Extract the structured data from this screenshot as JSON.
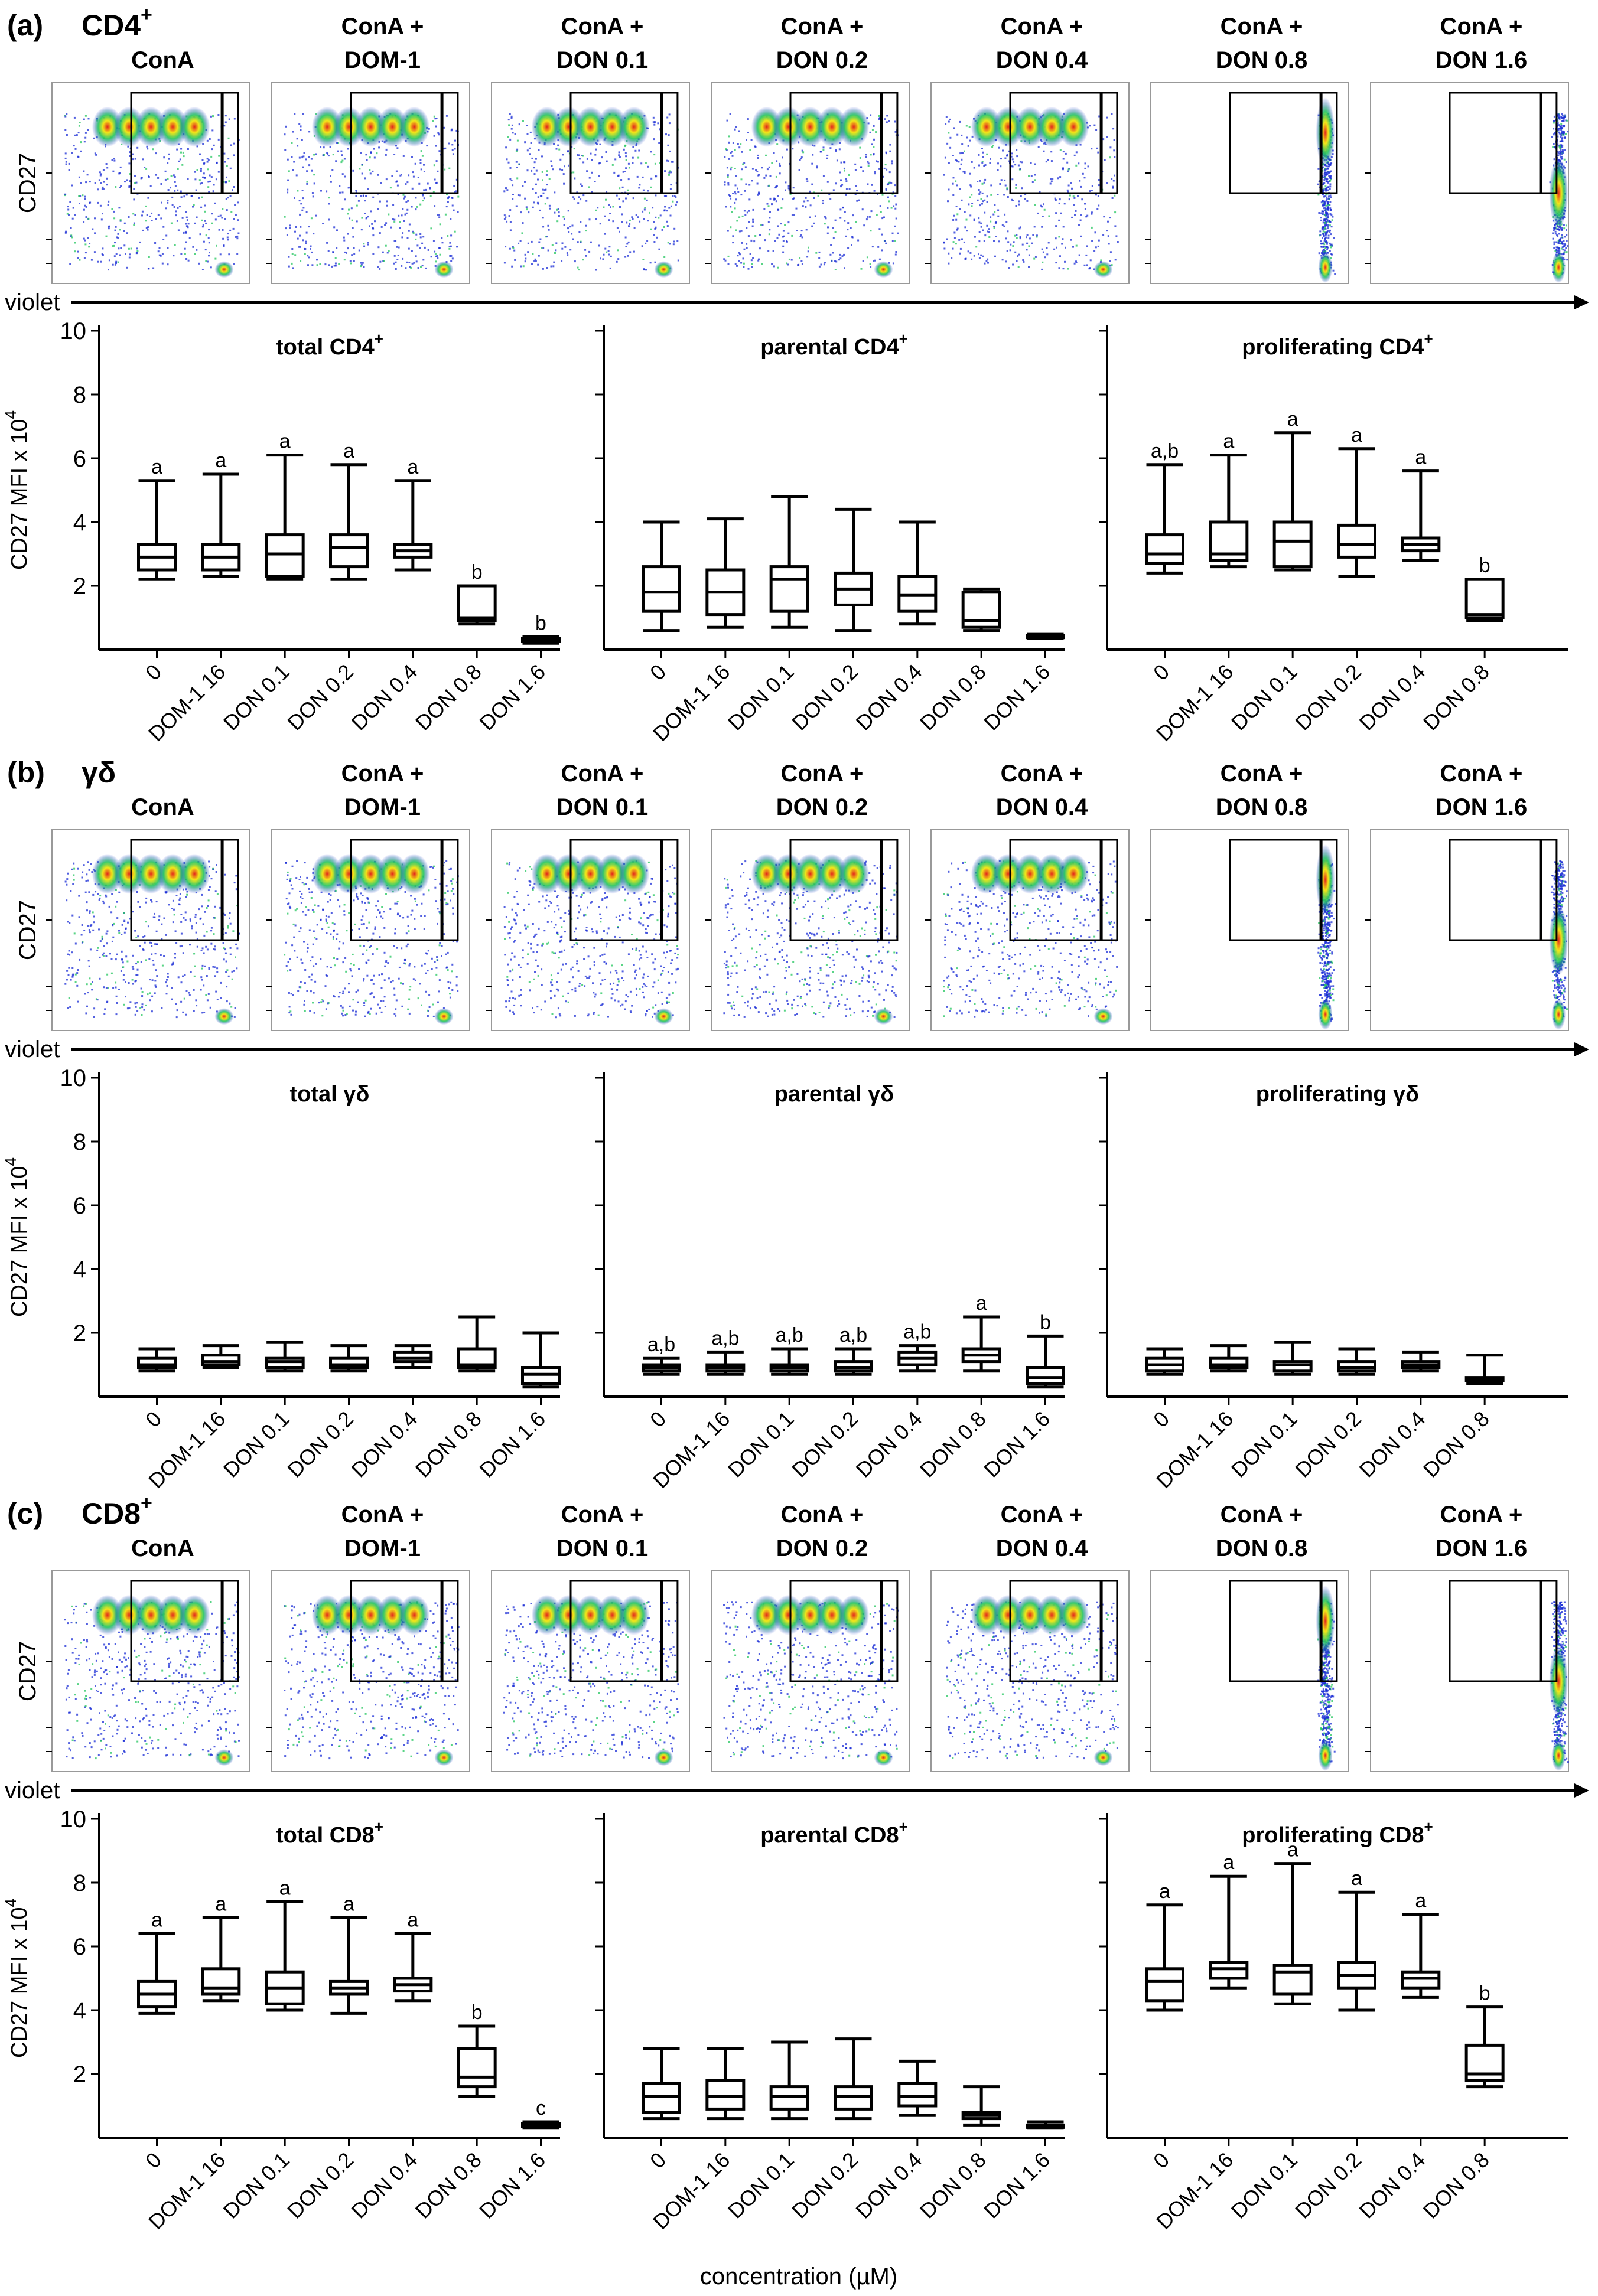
{
  "colors": {
    "ink": "#000000",
    "dense": "#e3261c",
    "mid": "#f2e619",
    "light": "#22c55e",
    "sparse": "#1a2cd6"
  },
  "axis": {
    "x_title": "concentration (µM)",
    "flow_x_label": "violet",
    "flow_y_label": "CD27"
  },
  "chart_data": [
    {
      "panel_letter": "(a)",
      "population": "CD4",
      "population_sup": "+",
      "flow_conditions": [
        {
          "line1": "",
          "line2": "ConA"
        },
        {
          "line1": "ConA +",
          "line2": "DOM-1"
        },
        {
          "line1": "ConA +",
          "line2": "DON 0.1"
        },
        {
          "line1": "ConA +",
          "line2": "DON 0.2"
        },
        {
          "line1": "ConA +",
          "line2": "DON 0.4"
        },
        {
          "line1": "ConA +",
          "line2": "DON 0.8"
        },
        {
          "line1": "ConA +",
          "line2": "DON 1.6"
        }
      ],
      "flow_shift": [
        0,
        0,
        0,
        0,
        0,
        0.6,
        1
      ],
      "box_ylabel": "CD27 MFI x 10",
      "box_ylabel_sup": "4",
      "box_ylim": [
        0,
        10
      ],
      "box_yticks": [
        "2",
        "4",
        "6",
        "8",
        "10"
      ],
      "box_type": "box-whisker",
      "subplots": [
        {
          "title": "total CD4",
          "title_sup": "+",
          "categories": [
            "0",
            "DOM-1 16",
            "DON 0.1",
            "DON 0.2",
            "DON 0.4",
            "DON 0.8",
            "DON 1.6"
          ],
          "boxes": [
            {
              "min": 2.2,
              "q1": 2.5,
              "median": 2.9,
              "q3": 3.3,
              "max": 5.3,
              "label": "a"
            },
            {
              "min": 2.3,
              "q1": 2.5,
              "median": 2.9,
              "q3": 3.3,
              "max": 5.5,
              "label": "a"
            },
            {
              "min": 2.2,
              "q1": 2.3,
              "median": 3.0,
              "q3": 3.6,
              "max": 6.1,
              "label": "a"
            },
            {
              "min": 2.2,
              "q1": 2.6,
              "median": 3.2,
              "q3": 3.6,
              "max": 5.8,
              "label": "a"
            },
            {
              "min": 2.5,
              "q1": 2.9,
              "median": 3.1,
              "q3": 3.3,
              "max": 5.3,
              "label": "a"
            },
            {
              "min": 0.8,
              "q1": 0.9,
              "median": 1.0,
              "q3": 2.0,
              "max": 2.0,
              "label": "b"
            },
            {
              "min": 0.2,
              "q1": 0.25,
              "median": 0.3,
              "q3": 0.35,
              "max": 0.4,
              "label": "b"
            }
          ]
        },
        {
          "title": "parental CD4",
          "title_sup": "+",
          "categories": [
            "0",
            "DOM-1 16",
            "DON 0.1",
            "DON 0.2",
            "DON 0.4",
            "DON 0.8",
            "DON 1.6"
          ],
          "boxes": [
            {
              "min": 0.6,
              "q1": 1.2,
              "median": 1.8,
              "q3": 2.6,
              "max": 4.0,
              "label": ""
            },
            {
              "min": 0.7,
              "q1": 1.1,
              "median": 1.8,
              "q3": 2.5,
              "max": 4.1,
              "label": ""
            },
            {
              "min": 0.7,
              "q1": 1.2,
              "median": 2.2,
              "q3": 2.6,
              "max": 4.8,
              "label": ""
            },
            {
              "min": 0.6,
              "q1": 1.4,
              "median": 1.9,
              "q3": 2.4,
              "max": 4.4,
              "label": ""
            },
            {
              "min": 0.8,
              "q1": 1.2,
              "median": 1.7,
              "q3": 2.3,
              "max": 4.0,
              "label": ""
            },
            {
              "min": 0.6,
              "q1": 0.7,
              "median": 0.9,
              "q3": 1.8,
              "max": 1.9,
              "label": ""
            },
            {
              "min": 0.35,
              "q1": 0.38,
              "median": 0.42,
              "q3": 0.45,
              "max": 0.48,
              "label": ""
            }
          ]
        },
        {
          "title": "proliferating CD4",
          "title_sup": "+",
          "categories": [
            "0",
            "DOM-1 16",
            "DON 0.1",
            "DON 0.2",
            "DON 0.4",
            "DON 0.8"
          ],
          "boxes": [
            {
              "min": 2.4,
              "q1": 2.7,
              "median": 3.0,
              "q3": 3.6,
              "max": 5.8,
              "label": "a,b"
            },
            {
              "min": 2.6,
              "q1": 2.8,
              "median": 3.0,
              "q3": 4.0,
              "max": 6.1,
              "label": "a"
            },
            {
              "min": 2.5,
              "q1": 2.6,
              "median": 3.4,
              "q3": 4.0,
              "max": 6.8,
              "label": "a"
            },
            {
              "min": 2.3,
              "q1": 2.9,
              "median": 3.3,
              "q3": 3.9,
              "max": 6.3,
              "label": "a"
            },
            {
              "min": 2.8,
              "q1": 3.1,
              "median": 3.3,
              "q3": 3.5,
              "max": 5.6,
              "label": "a"
            },
            {
              "min": 0.9,
              "q1": 1.0,
              "median": 1.1,
              "q3": 2.2,
              "max": 2.2,
              "label": "b"
            }
          ]
        }
      ]
    },
    {
      "panel_letter": "(b)",
      "population": "γδ",
      "population_sup": "",
      "flow_conditions": [
        {
          "line1": "",
          "line2": "ConA"
        },
        {
          "line1": "ConA +",
          "line2": "DOM-1"
        },
        {
          "line1": "ConA +",
          "line2": "DON 0.1"
        },
        {
          "line1": "ConA +",
          "line2": "DON 0.2"
        },
        {
          "line1": "ConA +",
          "line2": "DON 0.4"
        },
        {
          "line1": "ConA +",
          "line2": "DON 0.8"
        },
        {
          "line1": "ConA +",
          "line2": "DON 1.6"
        }
      ],
      "flow_shift": [
        0,
        0,
        0,
        0,
        0,
        0.6,
        1
      ],
      "box_ylabel": "CD27 MFI x 10",
      "box_ylabel_sup": "4",
      "box_ylim": [
        0,
        10
      ],
      "box_yticks": [
        "2",
        "4",
        "6",
        "8",
        "10"
      ],
      "box_type": "box-whisker",
      "subplots": [
        {
          "title": "total γδ",
          "title_sup": "",
          "categories": [
            "0",
            "DOM-1 16",
            "DON 0.1",
            "DON 0.2",
            "DON 0.4",
            "DON 0.8",
            "DON 1.6"
          ],
          "boxes": [
            {
              "min": 0.8,
              "q1": 0.9,
              "median": 1.0,
              "q3": 1.2,
              "max": 1.5,
              "label": ""
            },
            {
              "min": 0.9,
              "q1": 1.0,
              "median": 1.1,
              "q3": 1.3,
              "max": 1.6,
              "label": ""
            },
            {
              "min": 0.8,
              "q1": 0.9,
              "median": 1.1,
              "q3": 1.2,
              "max": 1.7,
              "label": ""
            },
            {
              "min": 0.8,
              "q1": 0.9,
              "median": 1.0,
              "q3": 1.2,
              "max": 1.6,
              "label": ""
            },
            {
              "min": 0.9,
              "q1": 1.1,
              "median": 1.2,
              "q3": 1.4,
              "max": 1.6,
              "label": ""
            },
            {
              "min": 0.8,
              "q1": 0.9,
              "median": 1.0,
              "q3": 1.5,
              "max": 2.5,
              "label": ""
            },
            {
              "min": 0.3,
              "q1": 0.4,
              "median": 0.7,
              "q3": 0.9,
              "max": 2.0,
              "label": ""
            }
          ]
        },
        {
          "title": "parental γδ",
          "title_sup": "",
          "categories": [
            "0",
            "DOM-1 16",
            "DON 0.1",
            "DON 0.2",
            "DON 0.4",
            "DON 0.8",
            "DON 1.6"
          ],
          "boxes": [
            {
              "min": 0.7,
              "q1": 0.8,
              "median": 0.9,
              "q3": 1.0,
              "max": 1.2,
              "label": "a,b"
            },
            {
              "min": 0.7,
              "q1": 0.8,
              "median": 0.9,
              "q3": 1.0,
              "max": 1.4,
              "label": "a,b"
            },
            {
              "min": 0.7,
              "q1": 0.8,
              "median": 0.9,
              "q3": 1.0,
              "max": 1.5,
              "label": "a,b"
            },
            {
              "min": 0.7,
              "q1": 0.8,
              "median": 0.9,
              "q3": 1.1,
              "max": 1.5,
              "label": "a,b"
            },
            {
              "min": 0.8,
              "q1": 1.0,
              "median": 1.2,
              "q3": 1.4,
              "max": 1.6,
              "label": "a,b"
            },
            {
              "min": 0.8,
              "q1": 1.1,
              "median": 1.3,
              "q3": 1.5,
              "max": 2.5,
              "label": "a"
            },
            {
              "min": 0.3,
              "q1": 0.4,
              "median": 0.6,
              "q3": 0.9,
              "max": 1.9,
              "label": "b"
            }
          ]
        },
        {
          "title": "proliferating γδ",
          "title_sup": "",
          "categories": [
            "0",
            "DOM-1 16",
            "DON 0.1",
            "DON 0.2",
            "DON 0.4",
            "DON 0.8"
          ],
          "boxes": [
            {
              "min": 0.7,
              "q1": 0.8,
              "median": 1.0,
              "q3": 1.2,
              "max": 1.5,
              "label": ""
            },
            {
              "min": 0.8,
              "q1": 0.9,
              "median": 1.0,
              "q3": 1.2,
              "max": 1.6,
              "label": ""
            },
            {
              "min": 0.7,
              "q1": 0.8,
              "median": 1.0,
              "q3": 1.1,
              "max": 1.7,
              "label": ""
            },
            {
              "min": 0.7,
              "q1": 0.8,
              "median": 0.9,
              "q3": 1.1,
              "max": 1.5,
              "label": ""
            },
            {
              "min": 0.8,
              "q1": 0.9,
              "median": 1.0,
              "q3": 1.1,
              "max": 1.4,
              "label": ""
            },
            {
              "min": 0.4,
              "q1": 0.5,
              "median": 0.55,
              "q3": 0.6,
              "max": 1.3,
              "label": ""
            }
          ]
        }
      ]
    },
    {
      "panel_letter": "(c)",
      "population": "CD8",
      "population_sup": "+",
      "flow_conditions": [
        {
          "line1": "",
          "line2": "ConA"
        },
        {
          "line1": "ConA +",
          "line2": "DOM-1"
        },
        {
          "line1": "ConA +",
          "line2": "DON 0.1"
        },
        {
          "line1": "ConA +",
          "line2": "DON 0.2"
        },
        {
          "line1": "ConA +",
          "line2": "DON 0.4"
        },
        {
          "line1": "ConA +",
          "line2": "DON 0.8"
        },
        {
          "line1": "ConA +",
          "line2": "DON 1.6"
        }
      ],
      "flow_shift": [
        0,
        0,
        0,
        0,
        0,
        0.6,
        1
      ],
      "box_ylabel": "CD27 MFI x 10",
      "box_ylabel_sup": "4",
      "box_ylim": [
        0,
        10
      ],
      "box_yticks": [
        "2",
        "4",
        "6",
        "8",
        "10"
      ],
      "box_type": "box-whisker",
      "subplots": [
        {
          "title": "total CD8",
          "title_sup": "+",
          "categories": [
            "0",
            "DOM-1 16",
            "DON 0.1",
            "DON 0.2",
            "DON 0.4",
            "DON 0.8",
            "DON 1.6"
          ],
          "boxes": [
            {
              "min": 3.9,
              "q1": 4.1,
              "median": 4.5,
              "q3": 4.9,
              "max": 6.4,
              "label": "a"
            },
            {
              "min": 4.3,
              "q1": 4.5,
              "median": 4.7,
              "q3": 5.3,
              "max": 6.9,
              "label": "a"
            },
            {
              "min": 4.0,
              "q1": 4.2,
              "median": 4.7,
              "q3": 5.2,
              "max": 7.4,
              "label": "a"
            },
            {
              "min": 3.9,
              "q1": 4.5,
              "median": 4.7,
              "q3": 4.9,
              "max": 6.9,
              "label": "a"
            },
            {
              "min": 4.3,
              "q1": 4.6,
              "median": 4.8,
              "q3": 5.0,
              "max": 6.4,
              "label": "a"
            },
            {
              "min": 1.3,
              "q1": 1.6,
              "median": 1.9,
              "q3": 2.8,
              "max": 3.5,
              "label": "b"
            },
            {
              "min": 0.3,
              "q1": 0.35,
              "median": 0.4,
              "q3": 0.45,
              "max": 0.5,
              "label": "c"
            }
          ]
        },
        {
          "title": "parental CD8",
          "title_sup": "+",
          "categories": [
            "0",
            "DOM-1 16",
            "DON 0.1",
            "DON 0.2",
            "DON 0.4",
            "DON 0.8",
            "DON 1.6"
          ],
          "boxes": [
            {
              "min": 0.6,
              "q1": 0.8,
              "median": 1.3,
              "q3": 1.7,
              "max": 2.8,
              "label": ""
            },
            {
              "min": 0.6,
              "q1": 0.9,
              "median": 1.3,
              "q3": 1.8,
              "max": 2.8,
              "label": ""
            },
            {
              "min": 0.6,
              "q1": 0.9,
              "median": 1.3,
              "q3": 1.6,
              "max": 3.0,
              "label": ""
            },
            {
              "min": 0.6,
              "q1": 0.9,
              "median": 1.3,
              "q3": 1.6,
              "max": 3.1,
              "label": ""
            },
            {
              "min": 0.7,
              "q1": 1.0,
              "median": 1.3,
              "q3": 1.7,
              "max": 2.4,
              "label": ""
            },
            {
              "min": 0.4,
              "q1": 0.6,
              "median": 0.7,
              "q3": 0.8,
              "max": 1.6,
              "label": ""
            },
            {
              "min": 0.3,
              "q1": 0.33,
              "median": 0.36,
              "q3": 0.4,
              "max": 0.5,
              "label": ""
            }
          ]
        },
        {
          "title": "proliferating CD8",
          "title_sup": "+",
          "categories": [
            "0",
            "DOM-1 16",
            "DON 0.1",
            "DON 0.2",
            "DON 0.4",
            "DON 0.8"
          ],
          "boxes": [
            {
              "min": 4.0,
              "q1": 4.3,
              "median": 4.9,
              "q3": 5.3,
              "max": 7.3,
              "label": "a"
            },
            {
              "min": 4.7,
              "q1": 5.0,
              "median": 5.3,
              "q3": 5.5,
              "max": 8.2,
              "label": "a"
            },
            {
              "min": 4.2,
              "q1": 4.5,
              "median": 5.2,
              "q3": 5.4,
              "max": 8.6,
              "label": "a"
            },
            {
              "min": 4.0,
              "q1": 4.7,
              "median": 5.1,
              "q3": 5.5,
              "max": 7.7,
              "label": "a"
            },
            {
              "min": 4.4,
              "q1": 4.7,
              "median": 5.0,
              "q3": 5.2,
              "max": 7.0,
              "label": "a"
            },
            {
              "min": 1.6,
              "q1": 1.8,
              "median": 2.0,
              "q3": 2.9,
              "max": 4.1,
              "label": "b"
            }
          ]
        }
      ]
    }
  ]
}
